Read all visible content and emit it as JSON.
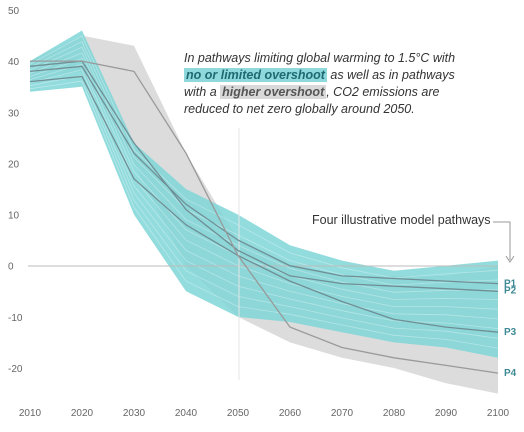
{
  "annotation": {
    "part1": "In pathways limiting global warming to 1.5°C with",
    "low_overshoot": "no or limited overshoot",
    "part2": "as well as in pathways with a",
    "high_overshoot": "higher overshoot",
    "part3": ", CO2 emissions are reduced to net zero globally around 2050."
  },
  "pathways_label": "Four illustrative model pathways",
  "colors": {
    "low_overshoot_band": "#7fd6d8",
    "high_overshoot_band": "#d6d6d6",
    "pathway_line": "#6f8f95",
    "label": "#3d8a94"
  },
  "chart_data": {
    "type": "area",
    "title": "",
    "xlabel": "",
    "ylabel": "",
    "xlim": [
      2010,
      2100
    ],
    "ylim": [
      -25,
      50
    ],
    "x_ticks": [
      2010,
      2020,
      2030,
      2040,
      2050,
      2060,
      2070,
      2080,
      2090,
      2100
    ],
    "y_ticks": [
      50,
      40,
      30,
      20,
      10,
      0,
      -10,
      -20
    ],
    "grid": false,
    "bands": [
      {
        "name": "higher overshoot",
        "color": "#d6d6d6",
        "x": [
          2010,
          2020,
          2030,
          2040,
          2050,
          2060,
          2070,
          2080,
          2090,
          2100
        ],
        "upper": [
          40,
          45,
          43,
          22,
          5,
          0,
          -2,
          -2,
          -2,
          0
        ],
        "lower": [
          36,
          38,
          20,
          0,
          -10,
          -15,
          -18,
          -20,
          -23,
          -25
        ]
      },
      {
        "name": "no or limited overshoot",
        "color": "#7fd6d8",
        "x": [
          2010,
          2020,
          2030,
          2040,
          2050,
          2060,
          2070,
          2080,
          2090,
          2100
        ],
        "upper": [
          40,
          46,
          24,
          15,
          10,
          4,
          1,
          -1,
          0,
          1
        ],
        "lower": [
          34,
          35,
          10,
          -5,
          -10,
          -11,
          -13,
          -15,
          -16,
          -18
        ]
      }
    ],
    "series": [
      {
        "name": "P1",
        "x": [
          2010,
          2020,
          2030,
          2040,
          2050,
          2060,
          2070,
          2080,
          2090,
          2100
        ],
        "values": [
          38,
          39,
          22,
          12,
          5,
          0,
          -2,
          -2.5,
          -3,
          -3.5
        ]
      },
      {
        "name": "P2",
        "x": [
          2010,
          2020,
          2030,
          2040,
          2050,
          2060,
          2070,
          2080,
          2090,
          2100
        ],
        "values": [
          39,
          40,
          24,
          11,
          3,
          -2,
          -3.5,
          -4,
          -4.5,
          -5
        ]
      },
      {
        "name": "P3",
        "x": [
          2010,
          2020,
          2030,
          2040,
          2050,
          2060,
          2070,
          2080,
          2090,
          2100
        ],
        "values": [
          36,
          37,
          17,
          8,
          2,
          -3,
          -7,
          -10.5,
          -12,
          -13
        ]
      },
      {
        "name": "P4",
        "x": [
          2010,
          2020,
          2030,
          2040,
          2050,
          2060,
          2070,
          2080,
          2090,
          2100
        ],
        "values": [
          40,
          40,
          38,
          22,
          2,
          -12,
          -16,
          -18,
          -19.5,
          -21
        ]
      }
    ]
  }
}
